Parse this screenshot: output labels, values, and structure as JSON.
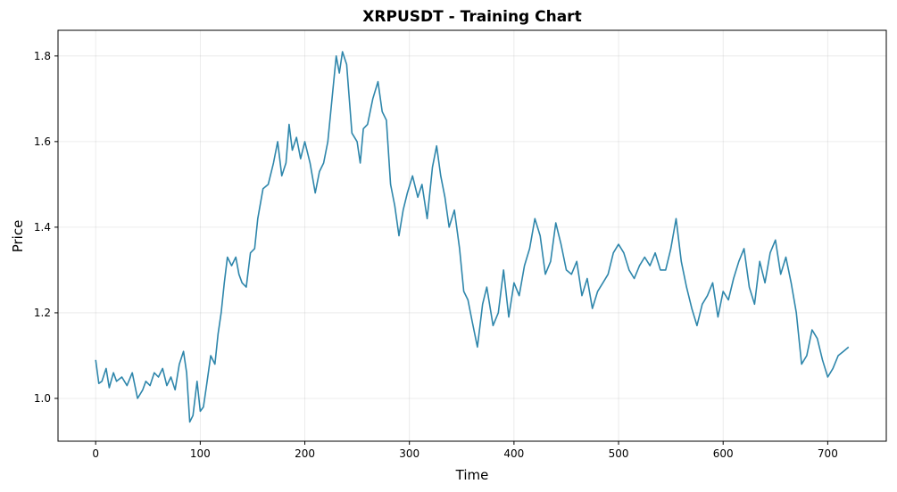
{
  "chart_data": {
    "type": "line",
    "title": "XRPUSDT - Training Chart",
    "xlabel": "Time",
    "ylabel": "Price",
    "xlim": [
      -36,
      756
    ],
    "ylim": [
      0.9,
      1.86
    ],
    "xticks": [
      0,
      100,
      200,
      300,
      400,
      500,
      600,
      700
    ],
    "yticks": [
      1.0,
      1.2,
      1.4,
      1.6,
      1.8
    ],
    "ytick_labels": [
      "1.0",
      "1.2",
      "1.4",
      "1.6",
      "1.8"
    ],
    "grid": true,
    "line_color": "#2e86ab",
    "series": [
      {
        "x": [
          0,
          3,
          6,
          10,
          13,
          17,
          20,
          25,
          30,
          35,
          40,
          45,
          48,
          52,
          56,
          60,
          64,
          68,
          72,
          76,
          80,
          84,
          87,
          90,
          93,
          97,
          100,
          103,
          106,
          110,
          114,
          117,
          120,
          123,
          126,
          130,
          134,
          137,
          140,
          144,
          148,
          152,
          155,
          160,
          165,
          170,
          174,
          178,
          182,
          185,
          188,
          192,
          196,
          200,
          205,
          210,
          214,
          218,
          222,
          226,
          230,
          233,
          236,
          240,
          245,
          250,
          253,
          256,
          260,
          265,
          270,
          274,
          278,
          282,
          286,
          290,
          294,
          298,
          303,
          308,
          312,
          317,
          322,
          326,
          330,
          334,
          338,
          343,
          348,
          352,
          356,
          360,
          365,
          370,
          374,
          380,
          385,
          390,
          395,
          400,
          405,
          410,
          415,
          420,
          425,
          430,
          435,
          440,
          445,
          450,
          455,
          460,
          465,
          470,
          475,
          480,
          485,
          490,
          495,
          500,
          505,
          510,
          515,
          520,
          525,
          530,
          535,
          540,
          545,
          550,
          555,
          560,
          565,
          570,
          575,
          580,
          585,
          590,
          595,
          600,
          605,
          610,
          615,
          620,
          625,
          630,
          635,
          640,
          645,
          650,
          655,
          660,
          665,
          670,
          675,
          680,
          685,
          690,
          695,
          700,
          705,
          710,
          715,
          720
        ],
        "values": [
          1.09,
          1.035,
          1.04,
          1.07,
          1.025,
          1.06,
          1.04,
          1.05,
          1.03,
          1.06,
          1.0,
          1.02,
          1.04,
          1.03,
          1.06,
          1.05,
          1.07,
          1.03,
          1.05,
          1.02,
          1.08,
          1.11,
          1.06,
          0.945,
          0.96,
          1.04,
          0.97,
          0.98,
          1.03,
          1.1,
          1.08,
          1.15,
          1.2,
          1.27,
          1.33,
          1.31,
          1.33,
          1.29,
          1.27,
          1.26,
          1.34,
          1.35,
          1.42,
          1.49,
          1.5,
          1.55,
          1.6,
          1.52,
          1.55,
          1.64,
          1.58,
          1.61,
          1.56,
          1.6,
          1.55,
          1.48,
          1.53,
          1.55,
          1.6,
          1.7,
          1.8,
          1.76,
          1.81,
          1.78,
          1.62,
          1.6,
          1.55,
          1.63,
          1.64,
          1.7,
          1.74,
          1.67,
          1.65,
          1.5,
          1.45,
          1.38,
          1.44,
          1.48,
          1.52,
          1.47,
          1.5,
          1.42,
          1.54,
          1.59,
          1.52,
          1.47,
          1.4,
          1.44,
          1.35,
          1.25,
          1.23,
          1.18,
          1.12,
          1.22,
          1.26,
          1.17,
          1.2,
          1.3,
          1.19,
          1.27,
          1.24,
          1.31,
          1.35,
          1.42,
          1.38,
          1.29,
          1.32,
          1.41,
          1.36,
          1.3,
          1.29,
          1.32,
          1.24,
          1.28,
          1.21,
          1.25,
          1.27,
          1.29,
          1.34,
          1.36,
          1.34,
          1.3,
          1.28,
          1.31,
          1.33,
          1.31,
          1.34,
          1.3,
          1.3,
          1.35,
          1.42,
          1.32,
          1.26,
          1.21,
          1.17,
          1.22,
          1.24,
          1.27,
          1.19,
          1.25,
          1.23,
          1.28,
          1.32,
          1.35,
          1.26,
          1.22,
          1.32,
          1.27,
          1.34,
          1.37,
          1.29,
          1.33,
          1.27,
          1.2,
          1.08,
          1.1,
          1.16,
          1.14,
          1.09,
          1.05,
          1.07,
          1.1,
          1.11,
          1.12
        ]
      }
    ]
  }
}
